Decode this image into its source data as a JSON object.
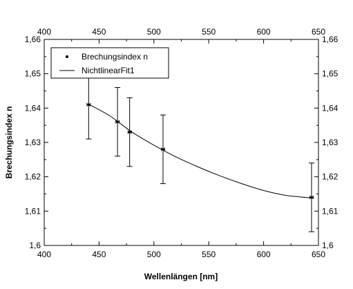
{
  "chart_data": {
    "type": "scatter",
    "xlabel": "Wellenlängen [nm]",
    "ylabel": "Brechungsindex n",
    "xlim": [
      400,
      650
    ],
    "ylim": [
      1.6,
      1.66
    ],
    "x_ticks": [
      400,
      450,
      500,
      550,
      600,
      650
    ],
    "x_tick_labels": [
      "400",
      "450",
      "500",
      "550",
      "600",
      "650"
    ],
    "y_ticks": [
      1.6,
      1.61,
      1.62,
      1.63,
      1.64,
      1.65,
      1.66
    ],
    "y_tick_labels": [
      "1,6",
      "1,61",
      "1,62",
      "1,63",
      "1,64",
      "1,65",
      "1,66"
    ],
    "mirror_axes": true,
    "grid": false,
    "legend_position": "top-left",
    "series": [
      {
        "name": "Brechungsindex n",
        "kind": "points-with-errorbars",
        "x": [
          440.5,
          466.8,
          477.9,
          508.3,
          643.7
        ],
        "y": [
          1.641,
          1.636,
          1.633,
          1.628,
          1.614
        ],
        "y_error": [
          0.01,
          0.01,
          0.01,
          0.01,
          0.01
        ],
        "x_error": [
          1.5,
          1.5,
          1.5,
          1.5,
          1.5
        ]
      },
      {
        "name": "NichtlinearFit1",
        "kind": "line",
        "x": [
          440,
          460,
          480,
          500,
          520,
          540,
          560,
          580,
          600,
          620,
          645
        ],
        "y": [
          1.6412,
          1.6377,
          1.633,
          1.6292,
          1.6258,
          1.6229,
          1.6203,
          1.618,
          1.616,
          1.6146,
          1.6138
        ]
      }
    ]
  }
}
